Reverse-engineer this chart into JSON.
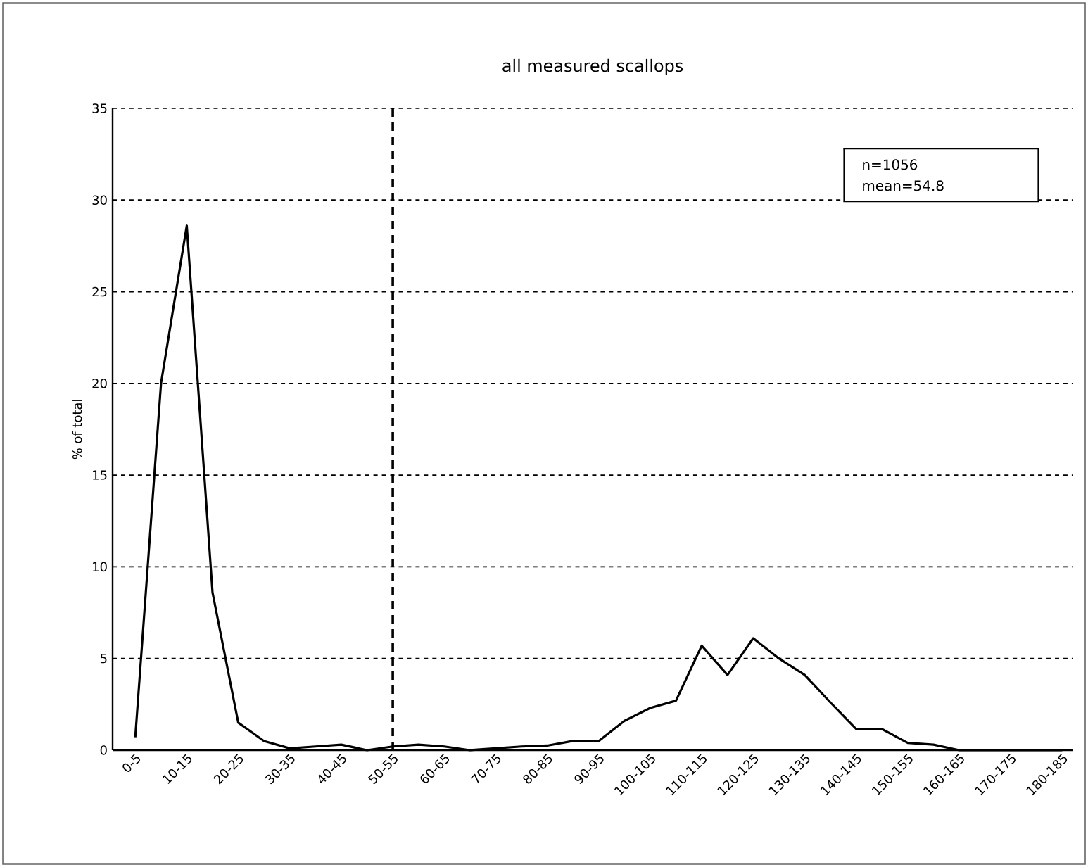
{
  "chart_data": {
    "type": "line",
    "title": "all measured scallops",
    "ylabel": "% of total",
    "categories": [
      "0-5",
      null,
      "10-15",
      null,
      "20-25",
      null,
      "30-35",
      null,
      "40-45",
      null,
      "50-55",
      null,
      "60-65",
      null,
      "70-75",
      null,
      "80-85",
      null,
      "90-95",
      null,
      "100-105",
      null,
      "110-115",
      null,
      "120-125",
      null,
      "130-135",
      null,
      "140-145",
      null,
      "150-155",
      null,
      "160-165",
      null,
      "170-175",
      null,
      "180-185"
    ],
    "series": [
      {
        "color": "#000000",
        "values": [
          0.7,
          20,
          28.6,
          8.6,
          1.5,
          0.5,
          0.1,
          0.2,
          0.3,
          0,
          0.2,
          0.3,
          0.2,
          0,
          0.1,
          0.2,
          0.25,
          0.5,
          0.5,
          1.6,
          2.3,
          2.7,
          5.7,
          4.1,
          6.1,
          5.0,
          4.1,
          2.6,
          1.15,
          1.15,
          0.4,
          0.3,
          0,
          0,
          0,
          0,
          0
        ]
      }
    ],
    "ylim": [
      0,
      35
    ],
    "yticks": [
      0,
      5,
      10,
      15,
      20,
      25,
      30,
      35
    ],
    "grid": "y",
    "marker": "none",
    "line_style": "solid",
    "ref_lines": [
      {
        "axis": "x",
        "value": "50-55",
        "color": "#000000",
        "line_style": "dashed"
      }
    ],
    "annotations": [
      "n=1056",
      "mean=54.8"
    ]
  }
}
